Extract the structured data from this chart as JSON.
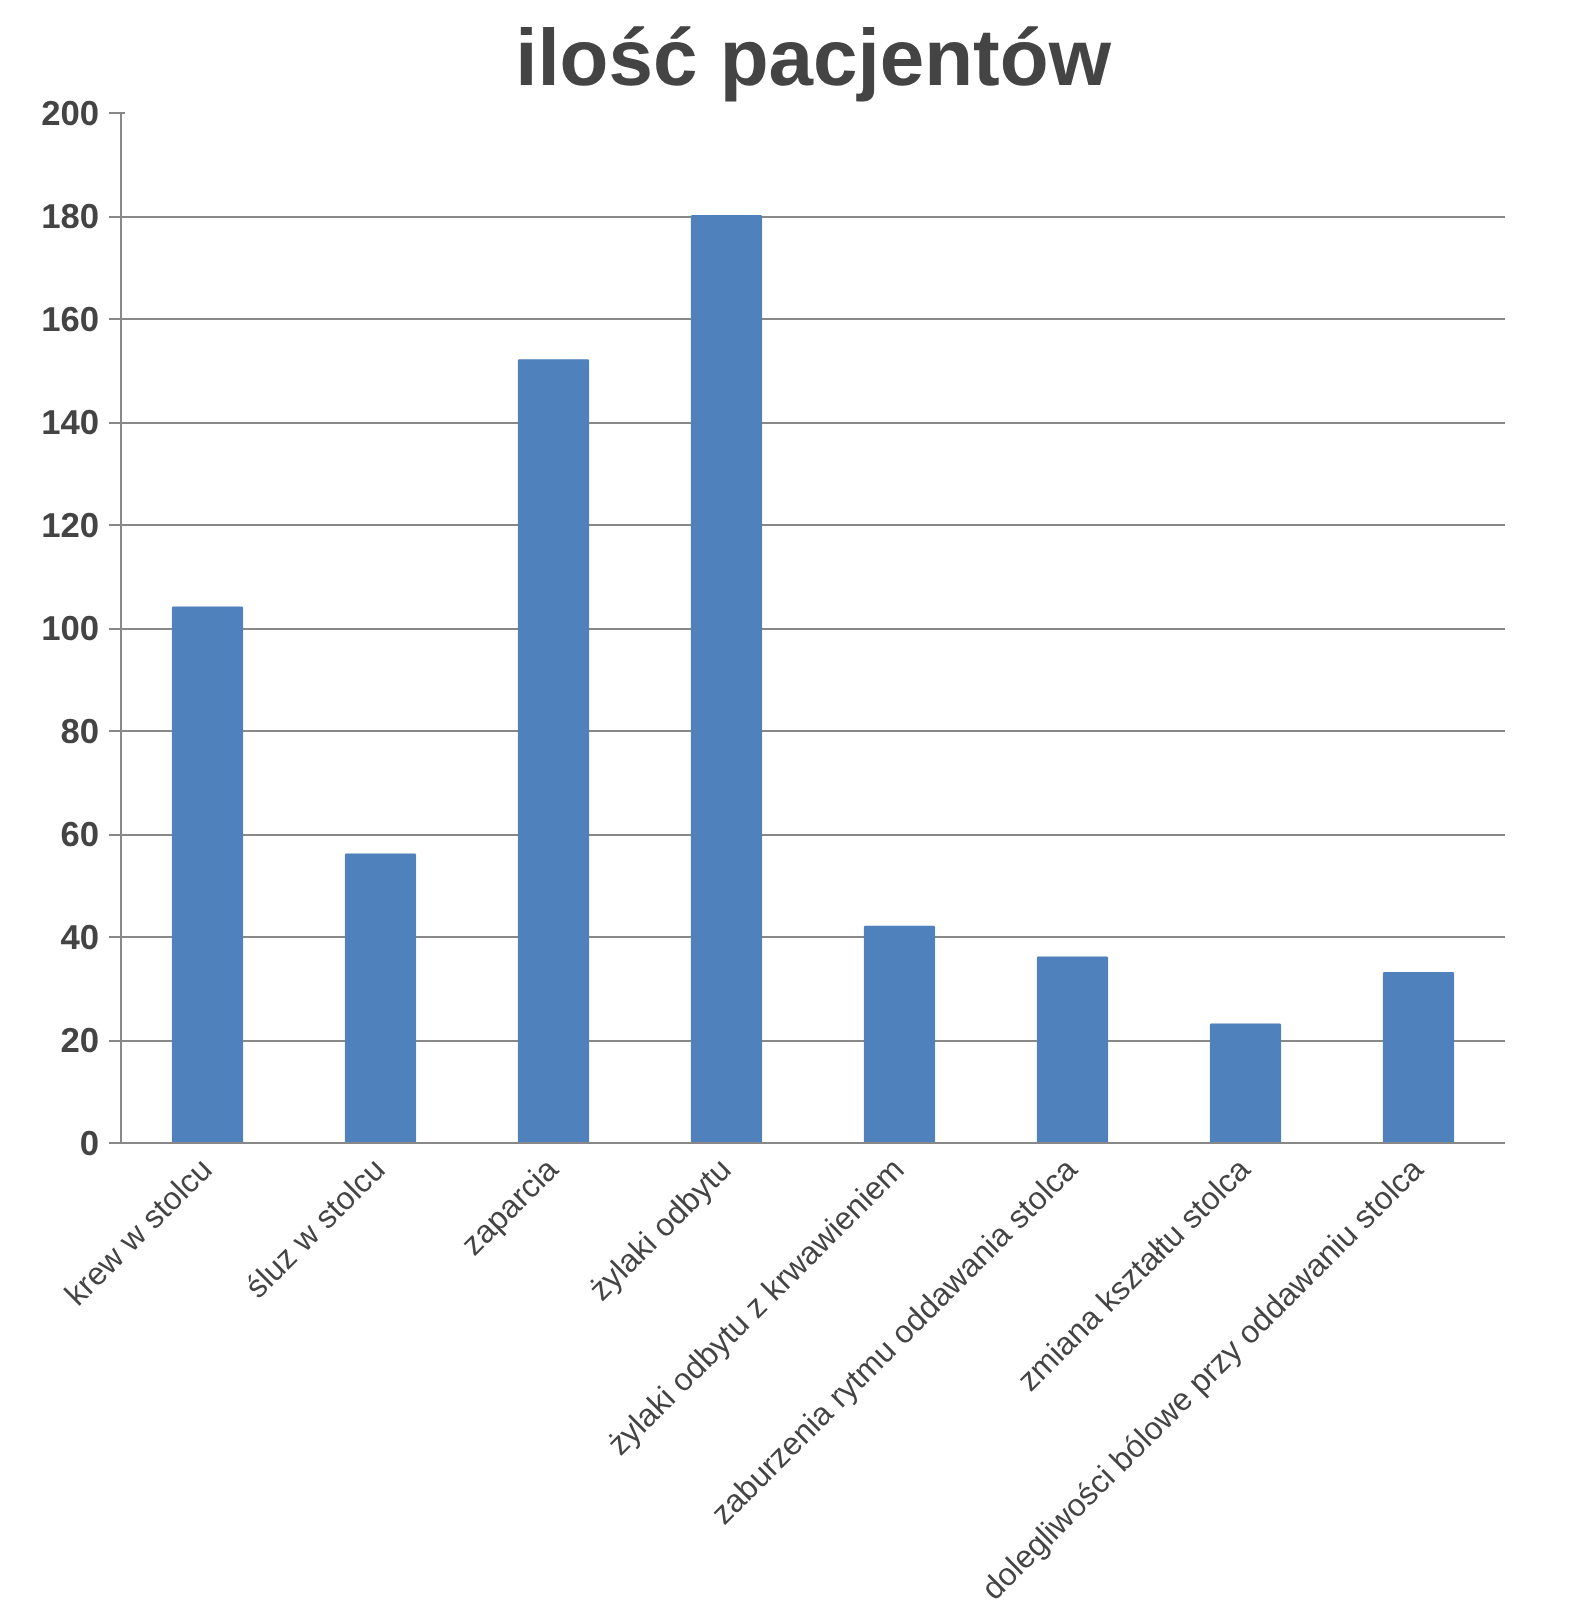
{
  "chart_data": {
    "type": "bar",
    "title": "ilość pacjentów",
    "categories": [
      "krew w stolcu",
      "śluz w stolcu",
      "zaparcia",
      "żylaki odbytu",
      "żylaki odbytu z krwawieniem",
      "zaburzenia rytmu oddawania stolca",
      "zmiana kształtu stolca",
      "dolegliwości bólowe przy oddawaniu stolca"
    ],
    "values": [
      104,
      56,
      152,
      180,
      42,
      36,
      23,
      33
    ],
    "color": "#4f81bd",
    "ylim": [
      0,
      200
    ],
    "yticks": [
      0,
      20,
      40,
      60,
      80,
      100,
      120,
      140,
      160,
      180,
      200
    ],
    "grid": "y"
  }
}
